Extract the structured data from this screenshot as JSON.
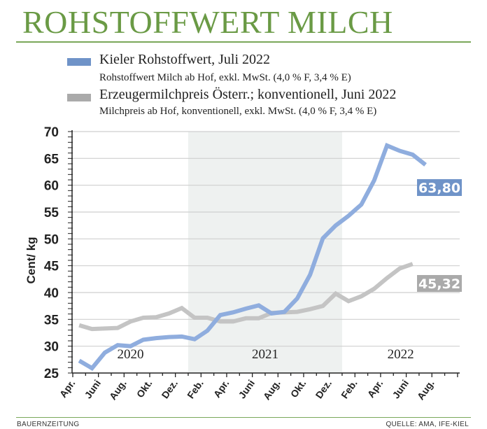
{
  "chart_data": {
    "type": "line",
    "title": "ROHSTOFFWERT MILCH",
    "ylabel": "Cent/ kg",
    "ylim": [
      25,
      70
    ],
    "yticks": [
      "25",
      "30",
      "35",
      "40",
      "45",
      "50",
      "55",
      "60",
      "65",
      "70"
    ],
    "grid": true,
    "x_tick_labels": [
      "Apr.",
      "Juni",
      "Aug.",
      "Okt.",
      "Dez.",
      "Feb.",
      "Apr.",
      "Juni",
      "Aug.",
      "Okt.",
      "Dez.",
      "Feb.",
      "Apr.",
      "Juni",
      "Aug."
    ],
    "x_range": [
      "2020-04",
      "2022-10"
    ],
    "years": [
      {
        "label": "2020",
        "from": "2020-04",
        "to": "2020-12"
      },
      {
        "label": "2021",
        "from": "2021-01",
        "to": "2021-12",
        "shaded": true
      },
      {
        "label": "2022",
        "from": "2022-01",
        "to": "2022-10"
      }
    ],
    "series": [
      {
        "name": "Kieler Rohstoffwert, Juli 2022",
        "description": "Rohstoffwert Milch ab Hof, exkl. MwSt. (4,0 % F, 3,4 % E)",
        "color": "#8fadde",
        "legend_color": "#6f93c8",
        "start": "2020-04",
        "values": [
          27.3,
          25.9,
          28.8,
          30.2,
          30.0,
          31.2,
          31.5,
          31.7,
          31.8,
          31.3,
          32.9,
          35.8,
          36.3,
          37.0,
          37.6,
          36.1,
          36.4,
          38.9,
          43.3,
          50.1,
          52.5,
          54.3,
          56.4,
          60.9,
          67.4,
          66.4,
          65.7,
          63.8
        ],
        "end_label": "63,80"
      },
      {
        "name": "Erzeugermilchpreis Österr.; konventionell, Juni 2022",
        "description": "Milchpreis ab Hof, konventionell, exkl. MwSt. (4,0 % F, 3,4 % E)",
        "color": "#c4c4c4",
        "legend_color": "#aaaaaa",
        "start": "2020-04",
        "values": [
          33.9,
          33.2,
          33.3,
          33.4,
          34.6,
          35.3,
          35.4,
          36.1,
          37.1,
          35.3,
          35.3,
          34.6,
          34.6,
          35.2,
          35.2,
          36.2,
          36.3,
          36.4,
          36.9,
          37.5,
          39.8,
          38.4,
          39.3,
          40.7,
          42.7,
          44.5,
          45.32
        ],
        "end_label": "45,32"
      }
    ]
  },
  "footer": {
    "left": "BAUERNZEITUNG",
    "right": "QUELLE: AMA, IFE-KIEL"
  },
  "colors": {
    "title": "#6a9a45",
    "band": "#eef1f0"
  }
}
